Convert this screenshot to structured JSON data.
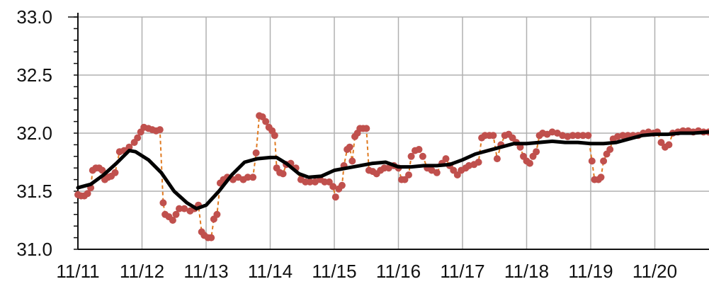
{
  "chart_data": {
    "type": "line",
    "title": "",
    "xlabel": "",
    "ylabel": "",
    "ylim": [
      31.0,
      33.0
    ],
    "yticks": [
      "31.0",
      "31.5",
      "32.0",
      "32.5",
      "33.0"
    ],
    "xticks": [
      "11/11",
      "11/12",
      "11/13",
      "11/14",
      "11/15",
      "11/16",
      "11/17",
      "11/18",
      "11/19",
      "11/20"
    ],
    "grid": true,
    "colors": {
      "observed": "#c0504d",
      "connector": "#e07a20",
      "smoothed": "#000000"
    },
    "series": [
      {
        "style": "points-dashed",
        "points": [
          [
            0.0,
            31.47
          ],
          [
            0.05,
            31.46
          ],
          [
            0.1,
            31.46
          ],
          [
            0.15,
            31.48
          ],
          [
            0.2,
            31.53
          ],
          [
            0.23,
            31.68
          ],
          [
            0.28,
            31.7
          ],
          [
            0.33,
            31.7
          ],
          [
            0.38,
            31.68
          ],
          [
            0.42,
            31.6
          ],
          [
            0.47,
            31.62
          ],
          [
            0.52,
            31.63
          ],
          [
            0.58,
            31.66
          ],
          [
            0.65,
            31.84
          ],
          [
            0.72,
            31.85
          ],
          [
            0.8,
            31.88
          ],
          [
            0.88,
            31.92
          ],
          [
            0.93,
            31.96
          ],
          [
            0.98,
            32.01
          ],
          [
            1.03,
            32.05
          ],
          [
            1.1,
            32.04
          ],
          [
            1.16,
            32.03
          ],
          [
            1.22,
            32.02
          ],
          [
            1.28,
            32.03
          ],
          [
            1.33,
            31.4
          ],
          [
            1.36,
            31.3
          ],
          [
            1.42,
            31.28
          ],
          [
            1.48,
            31.25
          ],
          [
            1.53,
            31.3
          ],
          [
            1.58,
            31.35
          ],
          [
            1.66,
            31.35
          ],
          [
            1.75,
            31.33
          ],
          [
            1.82,
            31.35
          ],
          [
            1.88,
            31.38
          ],
          [
            1.93,
            31.15
          ],
          [
            1.97,
            31.12
          ],
          [
            2.03,
            31.1
          ],
          [
            2.08,
            31.1
          ],
          [
            2.12,
            31.26
          ],
          [
            2.17,
            31.3
          ],
          [
            2.22,
            31.57
          ],
          [
            2.27,
            31.6
          ],
          [
            2.33,
            31.62
          ],
          [
            2.42,
            31.6
          ],
          [
            2.5,
            31.62
          ],
          [
            2.58,
            31.6
          ],
          [
            2.65,
            31.62
          ],
          [
            2.73,
            31.62
          ],
          [
            2.78,
            31.83
          ],
          [
            2.83,
            32.15
          ],
          [
            2.88,
            32.14
          ],
          [
            2.93,
            32.1
          ],
          [
            2.98,
            32.05
          ],
          [
            3.03,
            32.02
          ],
          [
            3.07,
            31.98
          ],
          [
            3.1,
            31.7
          ],
          [
            3.15,
            31.66
          ],
          [
            3.2,
            31.65
          ],
          [
            3.25,
            31.73
          ],
          [
            3.32,
            31.74
          ],
          [
            3.4,
            31.7
          ],
          [
            3.48,
            31.6
          ],
          [
            3.55,
            31.58
          ],
          [
            3.62,
            31.58
          ],
          [
            3.7,
            31.58
          ],
          [
            3.78,
            31.6
          ],
          [
            3.85,
            31.58
          ],
          [
            3.92,
            31.58
          ],
          [
            3.98,
            31.54
          ],
          [
            4.02,
            31.45
          ],
          [
            4.07,
            31.52
          ],
          [
            4.12,
            31.55
          ],
          [
            4.15,
            31.72
          ],
          [
            4.2,
            31.86
          ],
          [
            4.24,
            31.88
          ],
          [
            4.28,
            31.76
          ],
          [
            4.32,
            31.97
          ],
          [
            4.36,
            32.0
          ],
          [
            4.4,
            32.04
          ],
          [
            4.45,
            32.04
          ],
          [
            4.5,
            32.04
          ],
          [
            4.54,
            31.68
          ],
          [
            4.6,
            31.67
          ],
          [
            4.66,
            31.65
          ],
          [
            4.72,
            31.68
          ],
          [
            4.78,
            31.7
          ],
          [
            4.85,
            31.7
          ],
          [
            4.93,
            31.72
          ],
          [
            5.0,
            31.7
          ],
          [
            5.05,
            31.6
          ],
          [
            5.1,
            31.6
          ],
          [
            5.16,
            31.64
          ],
          [
            5.2,
            31.8
          ],
          [
            5.26,
            31.85
          ],
          [
            5.32,
            31.86
          ],
          [
            5.38,
            31.8
          ],
          [
            5.45,
            31.7
          ],
          [
            5.52,
            31.68
          ],
          [
            5.6,
            31.66
          ],
          [
            5.68,
            31.74
          ],
          [
            5.74,
            31.78
          ],
          [
            5.8,
            31.72
          ],
          [
            5.86,
            31.68
          ],
          [
            5.92,
            31.64
          ],
          [
            5.98,
            31.68
          ],
          [
            6.05,
            31.7
          ],
          [
            6.1,
            31.72
          ],
          [
            6.18,
            31.73
          ],
          [
            6.25,
            31.75
          ],
          [
            6.3,
            31.96
          ],
          [
            6.35,
            31.98
          ],
          [
            6.42,
            31.98
          ],
          [
            6.48,
            31.98
          ],
          [
            6.54,
            31.78
          ],
          [
            6.6,
            31.9
          ],
          [
            6.66,
            31.98
          ],
          [
            6.72,
            31.99
          ],
          [
            6.78,
            31.96
          ],
          [
            6.84,
            31.92
          ],
          [
            6.9,
            31.88
          ],
          [
            6.95,
            31.8
          ],
          [
            7.0,
            31.76
          ],
          [
            7.05,
            31.74
          ],
          [
            7.1,
            31.8
          ],
          [
            7.15,
            31.84
          ],
          [
            7.2,
            31.98
          ],
          [
            7.25,
            32.0
          ],
          [
            7.32,
            31.99
          ],
          [
            7.4,
            32.01
          ],
          [
            7.48,
            32.0
          ],
          [
            7.56,
            31.98
          ],
          [
            7.64,
            31.97
          ],
          [
            7.72,
            31.98
          ],
          [
            7.8,
            31.98
          ],
          [
            7.88,
            31.98
          ],
          [
            7.96,
            31.98
          ],
          [
            8.02,
            31.76
          ],
          [
            8.06,
            31.6
          ],
          [
            8.12,
            31.6
          ],
          [
            8.16,
            31.62
          ],
          [
            8.2,
            31.76
          ],
          [
            8.25,
            31.82
          ],
          [
            8.3,
            31.86
          ],
          [
            8.35,
            31.95
          ],
          [
            8.42,
            31.97
          ],
          [
            8.5,
            31.98
          ],
          [
            8.58,
            31.98
          ],
          [
            8.66,
            31.98
          ],
          [
            8.74,
            31.98
          ],
          [
            8.82,
            32.0
          ],
          [
            8.9,
            32.01
          ],
          [
            8.98,
            32.0
          ],
          [
            9.04,
            32.01
          ],
          [
            9.1,
            31.92
          ],
          [
            9.16,
            31.88
          ],
          [
            9.22,
            31.9
          ],
          [
            9.28,
            32.0
          ],
          [
            9.36,
            32.01
          ],
          [
            9.44,
            32.02
          ],
          [
            9.52,
            32.02
          ],
          [
            9.6,
            32.01
          ],
          [
            9.68,
            32.02
          ],
          [
            9.76,
            32.01
          ],
          [
            9.84,
            32.01
          ]
        ]
      },
      {
        "style": "smooth-line",
        "points": [
          [
            0.0,
            31.53
          ],
          [
            0.2,
            31.56
          ],
          [
            0.4,
            31.64
          ],
          [
            0.6,
            31.74
          ],
          [
            0.8,
            31.85
          ],
          [
            0.9,
            31.84
          ],
          [
            1.1,
            31.77
          ],
          [
            1.3,
            31.66
          ],
          [
            1.5,
            31.5
          ],
          [
            1.7,
            31.4
          ],
          [
            1.85,
            31.35
          ],
          [
            2.0,
            31.38
          ],
          [
            2.2,
            31.5
          ],
          [
            2.4,
            31.64
          ],
          [
            2.6,
            31.75
          ],
          [
            2.8,
            31.78
          ],
          [
            3.0,
            31.79
          ],
          [
            3.1,
            31.79
          ],
          [
            3.25,
            31.74
          ],
          [
            3.45,
            31.65
          ],
          [
            3.6,
            31.62
          ],
          [
            3.8,
            31.63
          ],
          [
            4.0,
            31.68
          ],
          [
            4.2,
            31.7
          ],
          [
            4.4,
            31.72
          ],
          [
            4.6,
            31.74
          ],
          [
            4.8,
            31.75
          ],
          [
            5.0,
            31.71
          ],
          [
            5.2,
            31.71
          ],
          [
            5.4,
            31.72
          ],
          [
            5.6,
            31.72
          ],
          [
            5.8,
            31.73
          ],
          [
            6.0,
            31.77
          ],
          [
            6.2,
            31.82
          ],
          [
            6.4,
            31.85
          ],
          [
            6.6,
            31.88
          ],
          [
            6.8,
            31.91
          ],
          [
            7.0,
            31.91
          ],
          [
            7.2,
            31.92
          ],
          [
            7.4,
            31.93
          ],
          [
            7.6,
            31.92
          ],
          [
            7.8,
            31.92
          ],
          [
            8.0,
            31.91
          ],
          [
            8.2,
            31.91
          ],
          [
            8.4,
            31.92
          ],
          [
            8.6,
            31.95
          ],
          [
            8.8,
            31.98
          ],
          [
            9.0,
            31.99
          ],
          [
            9.2,
            31.99
          ],
          [
            9.4,
            32.0
          ],
          [
            9.6,
            32.0
          ],
          [
            9.84,
            32.01
          ]
        ]
      }
    ]
  }
}
